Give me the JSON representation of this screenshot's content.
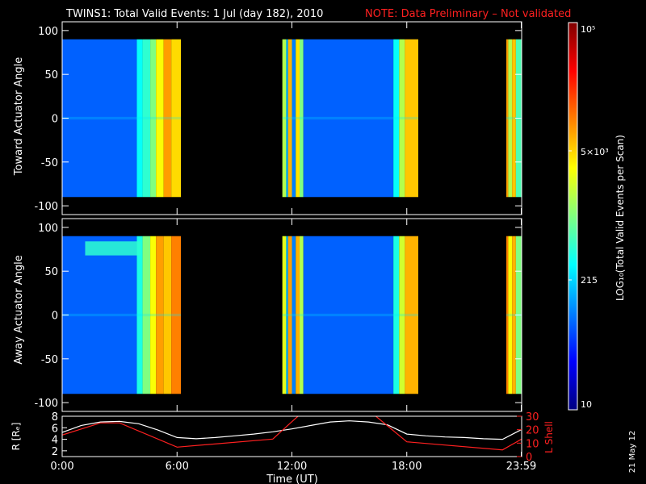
{
  "title": {
    "main": "TWINS1: Total Valid Events:  1 Jul (day 182), 2010",
    "note": "NOTE: Data Preliminary – Not validated"
  },
  "panels": {
    "toward": {
      "ylabel": "Toward Actuator Angle"
    },
    "away": {
      "ylabel": "Away Actuator Angle"
    },
    "orbit": {
      "ylabel_left": "R [Rₑ]",
      "ylabel_right": "L Shell"
    }
  },
  "xaxis": {
    "label": "Time (UT)"
  },
  "colorbar": {
    "label": "LOG₁₀(Total Valid Events per Scan)",
    "ticks": [
      "10⁵",
      "5×10³",
      "215",
      "10"
    ]
  },
  "date_stamp": "21 May 12",
  "colors": {
    "note": "#ff2020",
    "orbit_r": "#ffffff",
    "orbit_l": "#ff2020",
    "background": "#000000"
  },
  "chart_data": [
    {
      "type": "heatmap",
      "name": "Toward Actuator Angle",
      "x_unit": "hours UT",
      "ylim": [
        -110,
        110
      ],
      "yticks": [
        100,
        50,
        0,
        -50,
        -100
      ],
      "xticks": [
        "0:00",
        "6:00",
        "12:00",
        "18:00",
        "23:59"
      ],
      "xtick_values": [
        0,
        6,
        12,
        18,
        23.98
      ],
      "angle_range": [
        -90,
        90
      ],
      "data_intervals": [
        [
          0,
          6.2
        ],
        [
          11.5,
          18.6
        ],
        [
          23.2,
          24
        ]
      ],
      "column_levels": [
        [
          0,
          3.9,
          0.22
        ],
        [
          3.9,
          4.2,
          0.38
        ],
        [
          4.2,
          4.6,
          0.42
        ],
        [
          4.6,
          4.9,
          0.5
        ],
        [
          4.9,
          5.3,
          0.62
        ],
        [
          5.3,
          5.7,
          0.72
        ],
        [
          5.7,
          6.2,
          0.66
        ],
        [
          11.5,
          11.7,
          0.55
        ],
        [
          11.7,
          11.8,
          0.3
        ],
        [
          11.8,
          12.0,
          0.7
        ],
        [
          12.0,
          12.2,
          0.25
        ],
        [
          12.2,
          12.4,
          0.65
        ],
        [
          12.4,
          12.6,
          0.5
        ],
        [
          12.6,
          17.3,
          0.22
        ],
        [
          17.3,
          17.6,
          0.38
        ],
        [
          17.6,
          17.9,
          0.55
        ],
        [
          17.9,
          18.6,
          0.68
        ],
        [
          23.2,
          23.3,
          0.72
        ],
        [
          23.3,
          23.5,
          0.55
        ],
        [
          23.5,
          23.7,
          0.68
        ],
        [
          23.7,
          24,
          0.45
        ]
      ]
    },
    {
      "type": "heatmap",
      "name": "Away Actuator Angle",
      "x_unit": "hours UT",
      "ylim": [
        -110,
        110
      ],
      "yticks": [
        100,
        50,
        0,
        -50,
        -100
      ],
      "xticks": [
        "0:00",
        "6:00",
        "12:00",
        "18:00",
        "23:59"
      ],
      "xtick_values": [
        0,
        6,
        12,
        18,
        23.98
      ],
      "angle_range": [
        -90,
        90
      ],
      "data_intervals": [
        [
          0,
          6.2
        ],
        [
          11.5,
          18.6
        ],
        [
          23.2,
          24
        ]
      ],
      "column_levels": [
        [
          0,
          3.9,
          0.22
        ],
        [
          3.9,
          4.2,
          0.4
        ],
        [
          4.2,
          4.6,
          0.5
        ],
        [
          4.6,
          4.9,
          0.62
        ],
        [
          4.9,
          5.3,
          0.72
        ],
        [
          5.3,
          5.7,
          0.68
        ],
        [
          5.7,
          6.2,
          0.75
        ],
        [
          11.5,
          11.7,
          0.6
        ],
        [
          11.7,
          11.8,
          0.3
        ],
        [
          11.8,
          12.0,
          0.72
        ],
        [
          12.0,
          12.2,
          0.25
        ],
        [
          12.2,
          12.4,
          0.7
        ],
        [
          12.4,
          12.6,
          0.55
        ],
        [
          12.6,
          17.3,
          0.22
        ],
        [
          17.3,
          17.6,
          0.4
        ],
        [
          17.6,
          17.9,
          0.58
        ],
        [
          17.9,
          18.6,
          0.7
        ],
        [
          23.2,
          23.3,
          0.75
        ],
        [
          23.3,
          23.5,
          0.62
        ],
        [
          23.5,
          23.7,
          0.7
        ],
        [
          23.7,
          24,
          0.5
        ]
      ],
      "feature": {
        "x_range": [
          1.2,
          4.1
        ],
        "angle_range": [
          68,
          84
        ],
        "level": 0.42
      }
    },
    {
      "type": "line",
      "name": "orbit",
      "x_unit": "hours UT",
      "xlim": [
        0,
        24
      ],
      "xticks": [
        "0:00",
        "6:00",
        "12:00",
        "18:00",
        "23:59"
      ],
      "xtick_values": [
        0,
        6,
        12,
        18,
        23.98
      ],
      "left_axis": {
        "ylim": [
          1,
          8
        ],
        "yticks": [
          8,
          6,
          4,
          2
        ]
      },
      "right_axis": {
        "ylim": [
          0,
          30
        ],
        "yticks": [
          30,
          20,
          10,
          0
        ]
      },
      "series": [
        {
          "axis": "left",
          "x": [
            0,
            1,
            2,
            3,
            4,
            5,
            6,
            7,
            8,
            9,
            10,
            11,
            12,
            13,
            14,
            15,
            16,
            17,
            18,
            19,
            20,
            21,
            22,
            23,
            24
          ],
          "y": [
            5.2,
            6.4,
            7.0,
            7.1,
            6.7,
            5.6,
            4.3,
            4.1,
            4.3,
            4.6,
            4.9,
            5.3,
            5.8,
            6.4,
            7.0,
            7.2,
            7.0,
            6.5,
            4.9,
            4.6,
            4.4,
            4.3,
            4.1,
            4.0,
            5.7
          ]
        },
        {
          "axis": "right",
          "x": [
            0,
            2,
            3,
            6,
            11,
            12,
            12.4,
            16.3,
            18,
            23,
            24
          ],
          "y": [
            16,
            25,
            25,
            7,
            13,
            26,
            31,
            31,
            11,
            5,
            13
          ]
        }
      ]
    }
  ]
}
